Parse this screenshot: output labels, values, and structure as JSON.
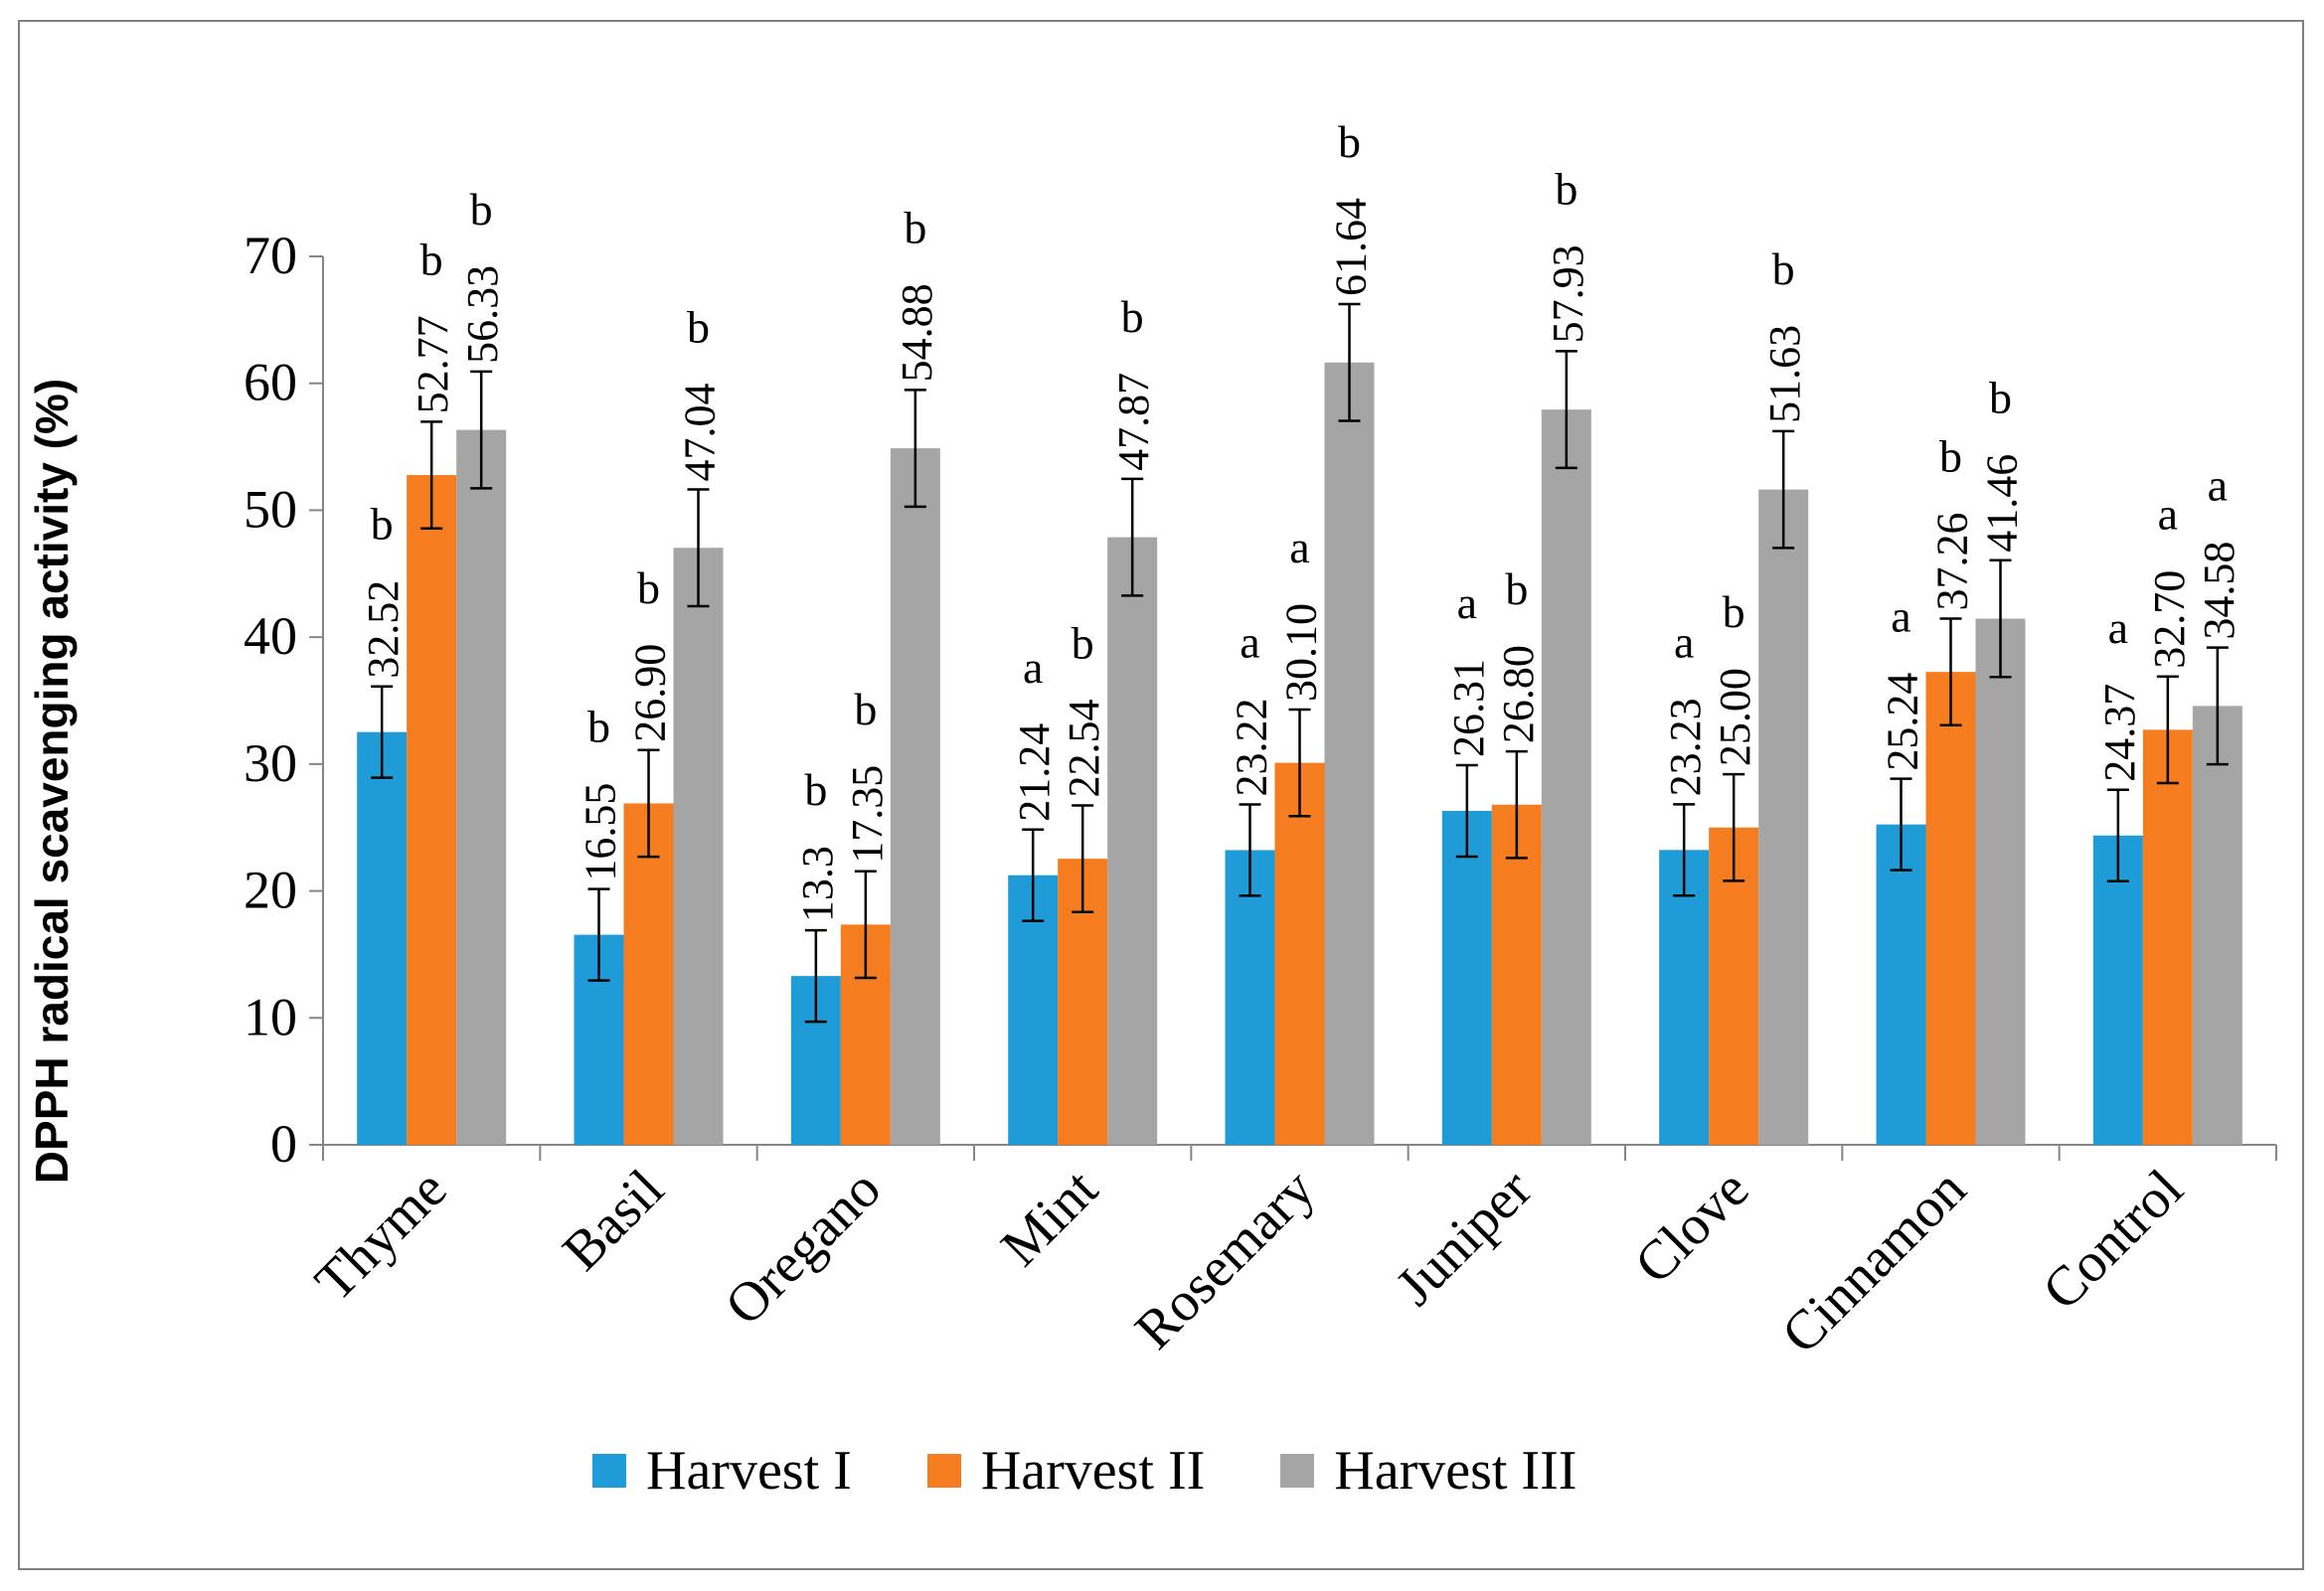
{
  "chart_data": {
    "type": "bar",
    "title": "",
    "xlabel": "",
    "ylabel": "DPPH radical scavenging activity (%)",
    "ylim": [
      0,
      70
    ],
    "yticks": [
      0,
      10,
      20,
      30,
      40,
      50,
      60,
      70
    ],
    "categories": [
      "Thyme",
      "Basil",
      "Oregano",
      "Mint",
      "Rosemary",
      "Juniper",
      "Clove",
      "Cinnamon",
      "Control"
    ],
    "series": [
      {
        "name": "Harvest I",
        "color": "#1f9bd7",
        "values": [
          32.52,
          16.55,
          13.3,
          21.24,
          23.22,
          26.31,
          23.23,
          25.24,
          24.37
        ],
        "value_labels": [
          "32.52",
          "16.55",
          "13.3",
          "21.24",
          "23.22",
          "26.31",
          "23.23",
          "25.24",
          "24.37"
        ],
        "errors": [
          3.6,
          3.6,
          3.6,
          3.6,
          3.6,
          3.6,
          3.6,
          3.6,
          3.6
        ],
        "letters": [
          "b",
          "b",
          "b",
          "a",
          "a",
          "a",
          "a",
          "a",
          "a"
        ]
      },
      {
        "name": "Harvest II",
        "color": "#f57d20",
        "values": [
          52.77,
          26.9,
          17.35,
          22.54,
          30.1,
          26.8,
          25.0,
          37.26,
          32.7
        ],
        "value_labels": [
          "52.77",
          "26.90",
          "17.35",
          "22.54",
          "30.10",
          "26.80",
          "25.00",
          "37.26",
          "32.70"
        ],
        "errors": [
          4.2,
          4.2,
          4.2,
          4.2,
          4.2,
          4.2,
          4.2,
          4.2,
          4.2
        ],
        "letters": [
          "b",
          "b",
          "b",
          "b",
          "a",
          "b",
          "b",
          "b",
          "a"
        ]
      },
      {
        "name": "Harvest III",
        "color": "#a5a5a5",
        "values": [
          56.33,
          47.04,
          54.88,
          47.87,
          61.64,
          57.93,
          51.63,
          41.46,
          34.58
        ],
        "value_labels": [
          "56.33",
          "47.04",
          "54.88",
          "47.87",
          "61.64",
          "57.93",
          "51.63",
          "41.46",
          "34.58"
        ],
        "errors": [
          4.6,
          4.6,
          4.6,
          4.6,
          4.6,
          4.6,
          4.6,
          4.6,
          4.6
        ],
        "letters": [
          "b",
          "b",
          "b",
          "b",
          "b",
          "b",
          "b",
          "b",
          "a"
        ]
      }
    ],
    "legend_position": "bottom"
  }
}
